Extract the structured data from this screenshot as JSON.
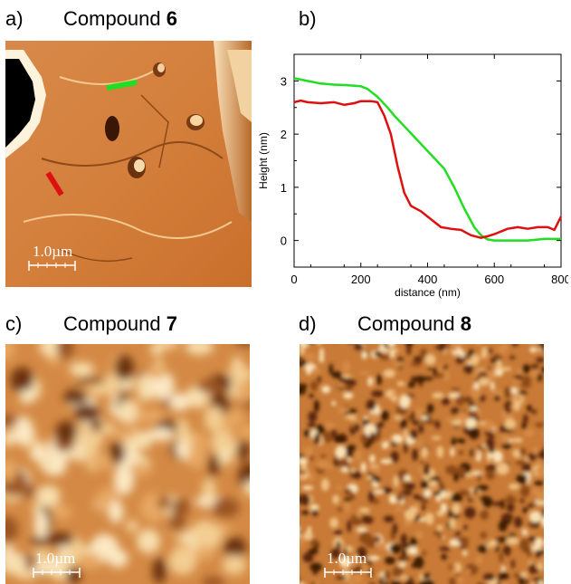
{
  "panels": {
    "a": {
      "label": "a)",
      "title_prefix": "Compound ",
      "title_number": "6",
      "scalebar": "1.0µm"
    },
    "b": {
      "label": "b)"
    },
    "c": {
      "label": "c)",
      "title_prefix": "Compound ",
      "title_number": "7",
      "scalebar": "1.0µm"
    },
    "d": {
      "label": "d)",
      "title_prefix": "Compound ",
      "title_number": "8",
      "scalebar": "1.0µm"
    }
  },
  "colors": {
    "afm_base": "#c9762e",
    "afm_light": "#f5d6a4",
    "afm_dark": "#5a2a0a",
    "green_profile": "#22dd22",
    "red_profile": "#dd1111"
  },
  "chart_data": {
    "type": "line",
    "title": "",
    "xlabel": "distance (nm)",
    "ylabel": "Height (nm)",
    "xlim": [
      0,
      800
    ],
    "ylim": [
      -0.5,
      3.5
    ],
    "xticks": [
      0,
      200,
      400,
      600,
      800
    ],
    "yticks": [
      0,
      1,
      2,
      3
    ],
    "grid": false,
    "series": [
      {
        "color": "#22dd22",
        "x": [
          0,
          40,
          80,
          120,
          160,
          200,
          220,
          250,
          280,
          300,
          330,
          360,
          390,
          420,
          450,
          480,
          510,
          540,
          560,
          580,
          600,
          650,
          700,
          750,
          800
        ],
        "y": [
          3.05,
          3.0,
          2.95,
          2.93,
          2.92,
          2.9,
          2.85,
          2.7,
          2.5,
          2.35,
          2.15,
          1.95,
          1.75,
          1.55,
          1.35,
          1.0,
          0.6,
          0.25,
          0.1,
          0.02,
          0.0,
          0.0,
          0.0,
          0.03,
          0.03
        ]
      },
      {
        "color": "#dd1111",
        "x": [
          0,
          20,
          40,
          80,
          120,
          150,
          180,
          200,
          230,
          250,
          270,
          290,
          310,
          330,
          350,
          380,
          410,
          440,
          470,
          500,
          530,
          560,
          580,
          600,
          640,
          670,
          700,
          730,
          760,
          780,
          800
        ],
        "y": [
          2.6,
          2.63,
          2.6,
          2.58,
          2.6,
          2.55,
          2.58,
          2.62,
          2.62,
          2.6,
          2.35,
          2.0,
          1.4,
          0.9,
          0.65,
          0.55,
          0.4,
          0.25,
          0.22,
          0.2,
          0.1,
          0.05,
          0.08,
          0.12,
          0.22,
          0.25,
          0.22,
          0.25,
          0.25,
          0.2,
          0.45
        ]
      }
    ]
  }
}
